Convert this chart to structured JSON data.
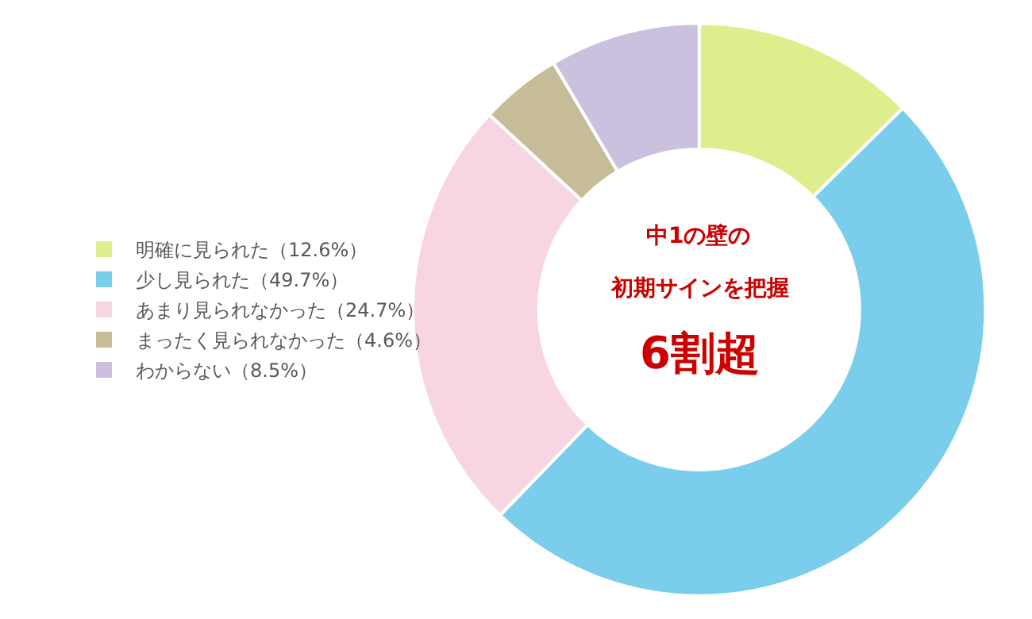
{
  "chart_data": {
    "type": "donut",
    "categories": [
      "明確に見られた（12.6%）",
      "少し見られた（49.7%）",
      "あまり見られなかった（24.7%）",
      "まったく見られなかった（4.6%）",
      "わからない（8.5%）"
    ],
    "values": [
      12.6,
      49.7,
      24.7,
      4.6,
      8.5
    ],
    "colors": [
      "#dcef8c",
      "#7acdeb",
      "#f8d5e3",
      "#c6bd98",
      "#cbc0dd"
    ],
    "annotations": [
      "中1の壁の",
      "初期サインを把握",
      "6割超"
    ],
    "legend": "left"
  }
}
